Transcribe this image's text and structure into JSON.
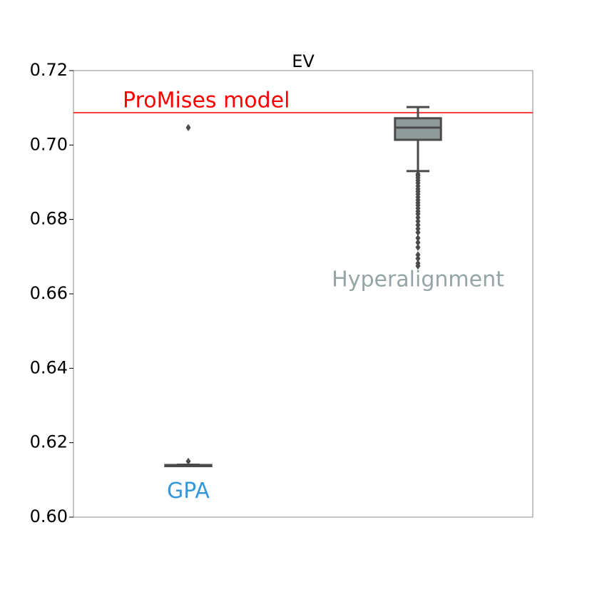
{
  "chart_data": {
    "type": "box",
    "title": "EV",
    "categories": [
      "GPA",
      "Hyperalignment"
    ],
    "label_colors": [
      "#3498db",
      "#95a5a6"
    ],
    "box_colors": [
      "#4a4a4a",
      "#8f9a9b"
    ],
    "line_color": "#4a4a4a",
    "stats": [
      {
        "whislo": 0.6137,
        "q1": 0.6137,
        "med": 0.6138,
        "q3": 0.614,
        "whishi": 0.6141,
        "fliers": [
          0.7047,
          0.615
        ]
      },
      {
        "whislo": 0.693,
        "q1": 0.7014,
        "med": 0.7047,
        "q3": 0.7072,
        "whishi": 0.7102,
        "fliers": [
          0.6922,
          0.6918,
          0.6912,
          0.6905,
          0.6898,
          0.689,
          0.6882,
          0.6875,
          0.6868,
          0.686,
          0.6852,
          0.6845,
          0.6838,
          0.683,
          0.6822,
          0.6815,
          0.6805,
          0.6795,
          0.6785,
          0.6775,
          0.6765,
          0.675,
          0.6738,
          0.6725,
          0.6705,
          0.6695,
          0.6682,
          0.6675
        ]
      }
    ],
    "hline": {
      "value": 0.7087,
      "label": "ProMises model",
      "color": "#ff0000"
    },
    "ylim": [
      0.6,
      0.72
    ],
    "yticks": [
      {
        "value": 0.6,
        "label": "0.60"
      },
      0.62,
      0.64,
      0.66,
      0.68,
      {
        "value": 0.7,
        "label": "0.70"
      },
      0.72
    ]
  }
}
